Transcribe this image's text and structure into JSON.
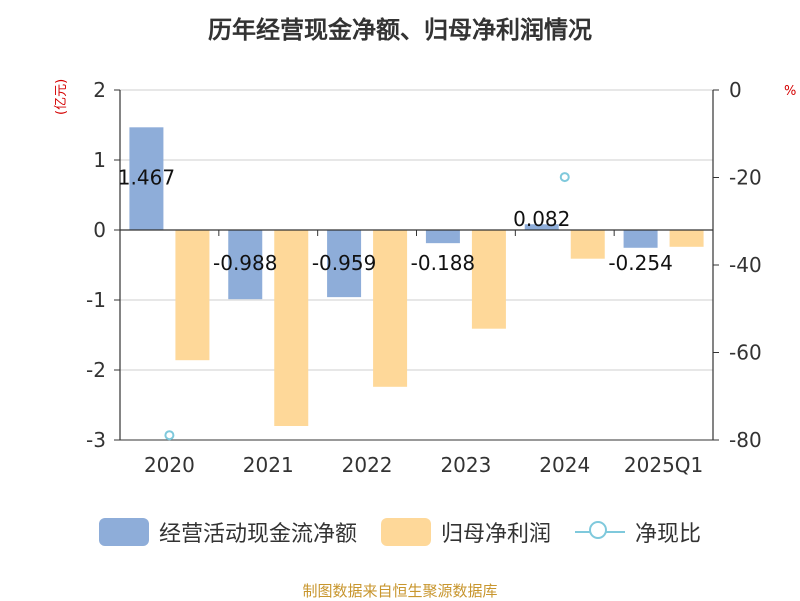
{
  "title": "历年经营现金净额、归母净利润情况",
  "units": {
    "left": "(亿元)",
    "right": "%"
  },
  "legend": {
    "items": [
      {
        "label": "经营活动现金流净额",
        "color": "#8eadd9"
      },
      {
        "label": "归母净利润",
        "color": "#fed899"
      },
      {
        "label": "净现比",
        "color": "#7fc9dc"
      }
    ]
  },
  "source": "制图数据来自恒生聚源数据库",
  "chart_data": {
    "type": "bar",
    "categories": [
      "2020",
      "2021",
      "2022",
      "2023",
      "2024",
      "2025Q1"
    ],
    "series": [
      {
        "name": "经营活动现金流净额",
        "axis": "left",
        "kind": "bar",
        "color": "#8eadd9",
        "values": [
          1.467,
          -0.988,
          -0.959,
          -0.188,
          0.082,
          -0.254
        ],
        "labels": [
          "1.467",
          "-0.988",
          "-0.959",
          "-0.188",
          "0.082",
          "-0.254"
        ]
      },
      {
        "name": "归母净利润",
        "axis": "left",
        "kind": "bar",
        "color": "#fed899",
        "values": [
          -1.86,
          -2.8,
          -2.24,
          -1.41,
          -0.41,
          -0.24
        ]
      },
      {
        "name": "净现比",
        "axis": "right",
        "kind": "scatter",
        "color": "#7fc9dc",
        "values": [
          -78.9,
          null,
          null,
          null,
          -19.9,
          null
        ]
      }
    ],
    "y_left": {
      "range": [
        -3,
        2
      ],
      "ticks": [
        "2",
        "1",
        "0",
        "-1",
        "-2",
        "-3"
      ]
    },
    "y_right": {
      "range": [
        -80,
        0
      ],
      "ticks": [
        "0",
        "-20",
        "-40",
        "-60",
        "-80"
      ]
    },
    "grid": true,
    "legend_position": "bottom"
  }
}
